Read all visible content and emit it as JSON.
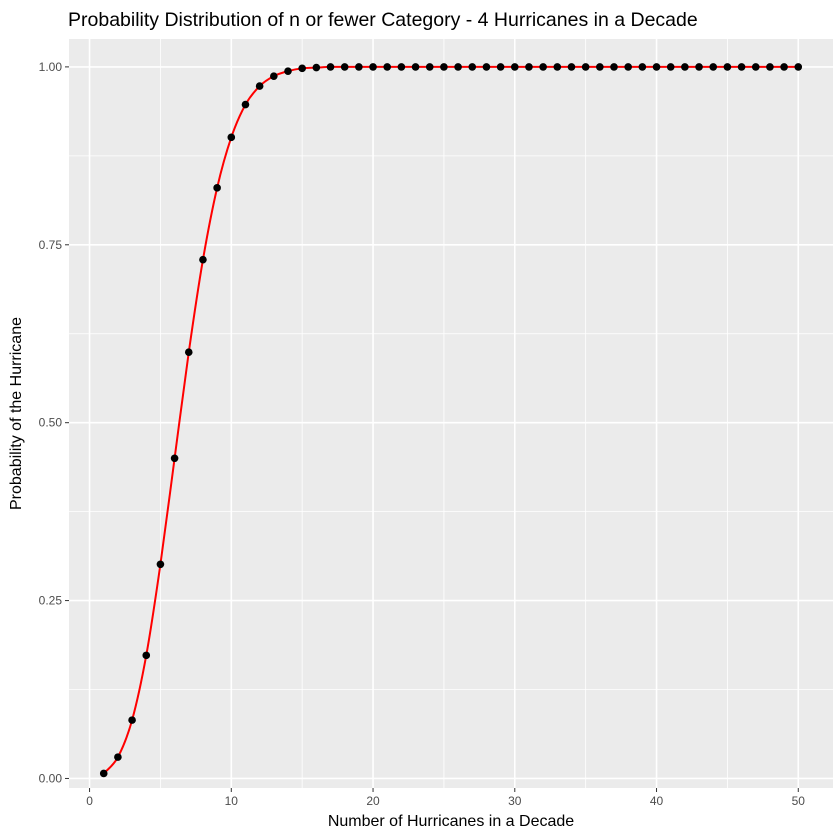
{
  "chart_data": {
    "type": "line",
    "title": "Probability Distribution of n or fewer Category - 4 Hurricanes in a Decade",
    "xlabel": "Number of Hurricanes in a Decade",
    "ylabel": "Probability of the Hurricane",
    "xlim": [
      -1.45,
      52.45
    ],
    "ylim": [
      -0.0134,
      1.0392
    ],
    "x_ticks": [
      0,
      10,
      20,
      30,
      40,
      50
    ],
    "x_tick_labels": [
      "0",
      "10",
      "20",
      "30",
      "40",
      "50"
    ],
    "y_ticks": [
      0,
      0.25,
      0.5,
      0.75,
      1.0
    ],
    "y_tick_labels": [
      "0.00",
      "0.25",
      "0.50",
      "0.75",
      "1.00"
    ],
    "grid": true,
    "background": "#ebebeb",
    "grid_color": "#ffffff",
    "series": [
      {
        "line_color": "#ff0000",
        "point_color": "#000000",
        "x": [
          1,
          2,
          3,
          4,
          5,
          6,
          7,
          8,
          9,
          10,
          11,
          12,
          13,
          14,
          15,
          16,
          17,
          18,
          19,
          20,
          21,
          22,
          23,
          24,
          25,
          26,
          27,
          28,
          29,
          30,
          31,
          32,
          33,
          34,
          35,
          36,
          37,
          38,
          39,
          40,
          41,
          42,
          43,
          44,
          45,
          46,
          47,
          48,
          49,
          50
        ],
        "y": [
          0.007,
          0.03,
          0.082,
          0.173,
          0.301,
          0.45,
          0.599,
          0.729,
          0.83,
          0.901,
          0.947,
          0.973,
          0.987,
          0.994,
          0.998,
          0.999,
          1.0,
          1.0,
          1.0,
          1.0,
          1.0,
          1.0,
          1.0,
          1.0,
          1.0,
          1.0,
          1.0,
          1.0,
          1.0,
          1.0,
          1.0,
          1.0,
          1.0,
          1.0,
          1.0,
          1.0,
          1.0,
          1.0,
          1.0,
          1.0,
          1.0,
          1.0,
          1.0,
          1.0,
          1.0,
          1.0,
          1.0,
          1.0,
          1.0,
          1.0
        ]
      }
    ]
  }
}
